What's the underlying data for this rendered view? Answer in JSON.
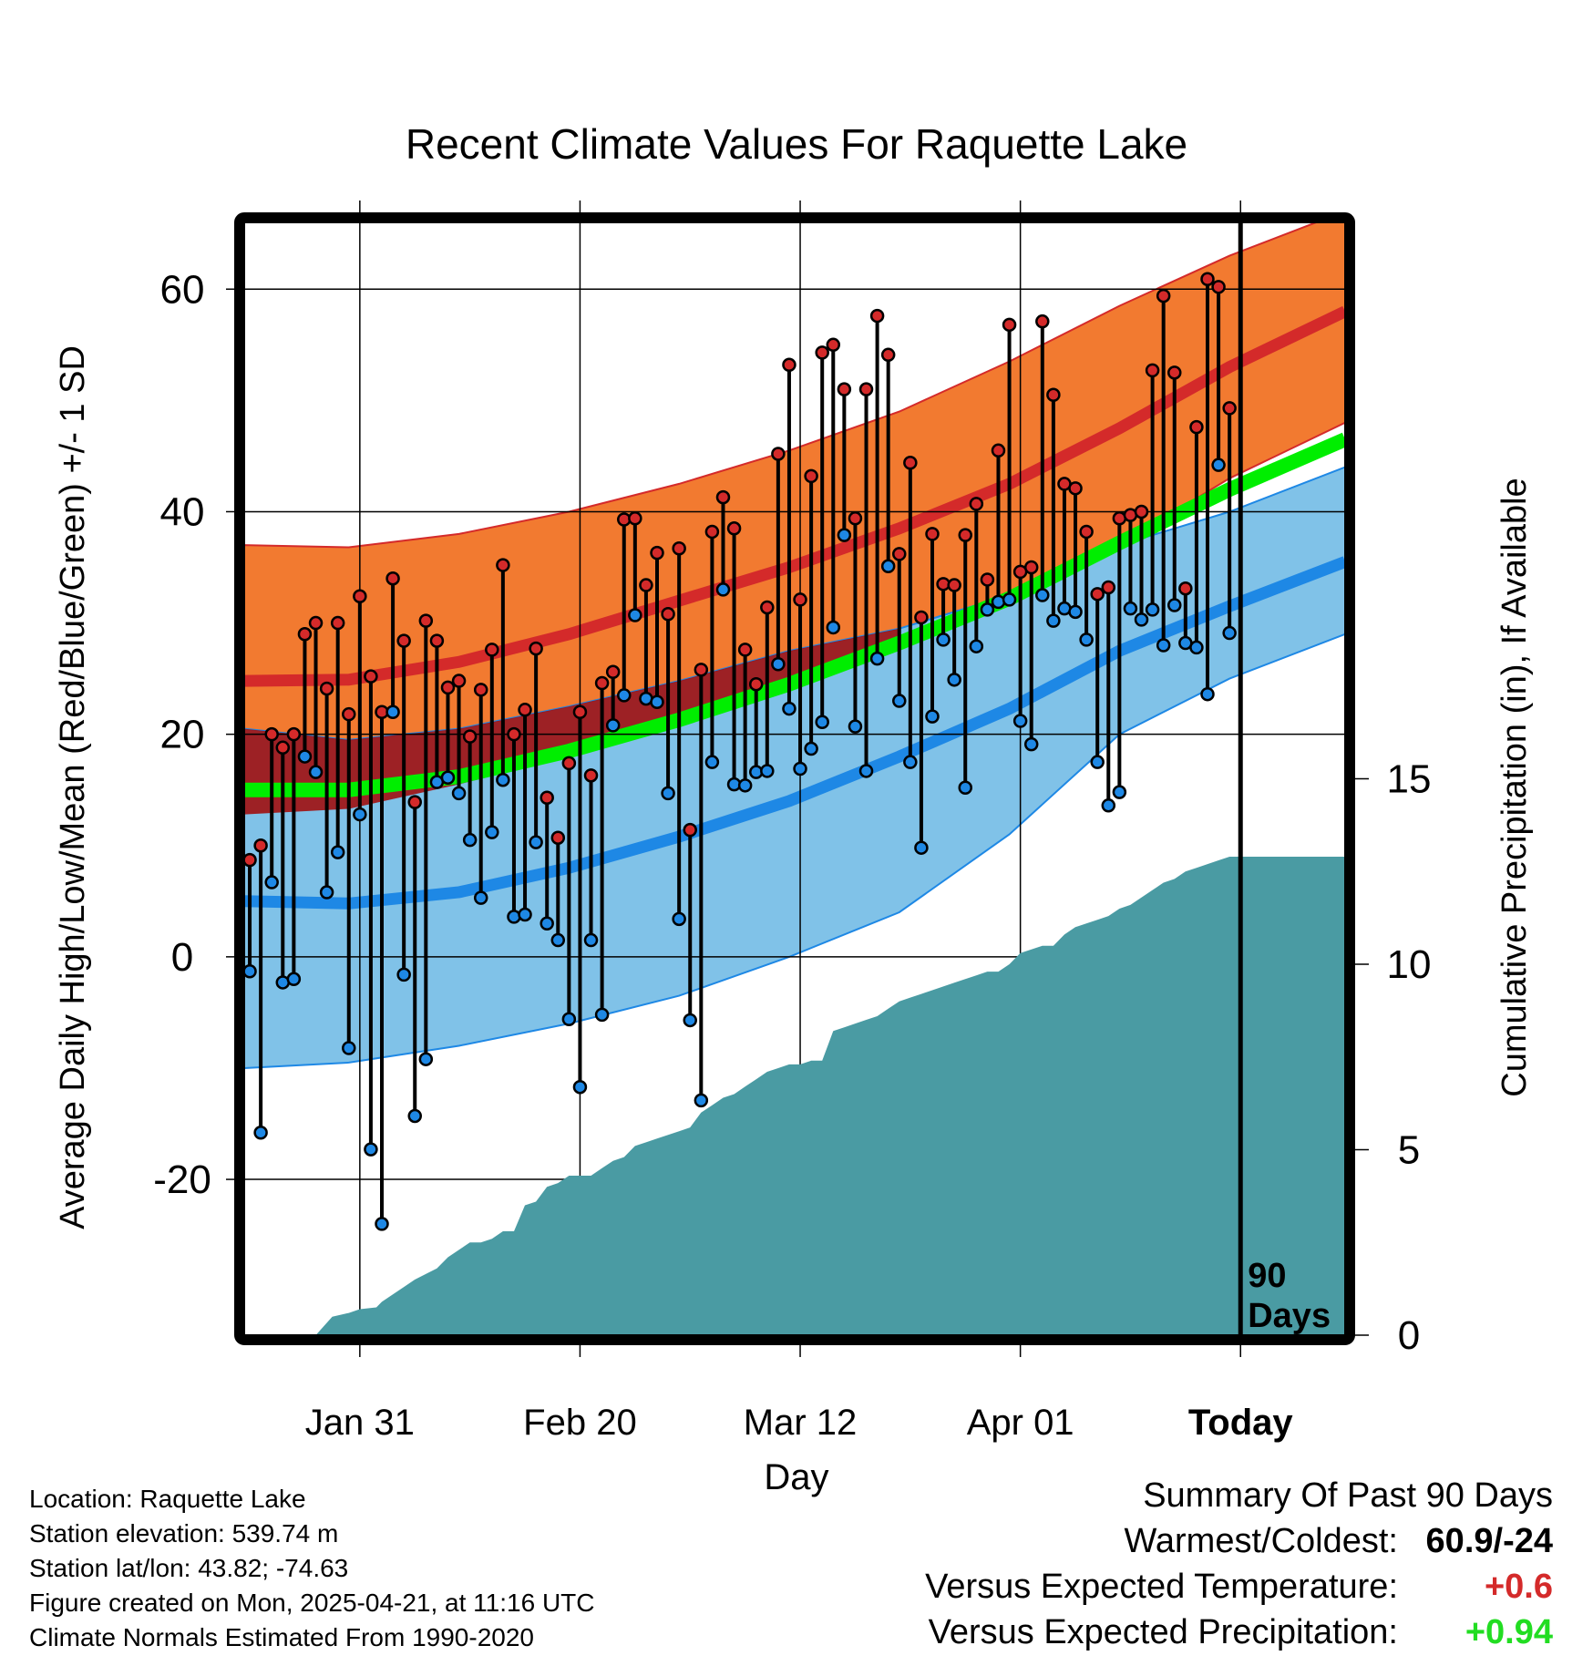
{
  "chart_data": {
    "type": "line",
    "title": "Recent Climate Values For Raquette Lake",
    "xlabel": "Day",
    "ylabel": "Average Daily High/Low/Mean (Red/Blue/Green) +/- 1 SD",
    "y2label": "Cumulative Precipitation (in), If Available",
    "ylim": [
      -34,
      66
    ],
    "y_ticks": [
      -20,
      0,
      20,
      40,
      60
    ],
    "y2lim": [
      0,
      30
    ],
    "y2_ticks": [
      0,
      5,
      10,
      15
    ],
    "xlim": [
      0.5,
      100.5
    ],
    "x_ticks": [
      {
        "day": 11,
        "label": "Jan 31"
      },
      {
        "day": 31,
        "label": "Feb 20"
      },
      {
        "day": 51,
        "label": "Mar 12"
      },
      {
        "day": 71,
        "label": "Apr 01"
      },
      {
        "day": 91,
        "label": "Today"
      }
    ],
    "today_marker": {
      "day": 91,
      "label_line1": "90",
      "label_line2": "Days"
    },
    "normals": {
      "x": [
        0.5,
        10,
        20,
        30,
        40,
        50,
        60,
        70,
        80,
        90,
        100.5
      ],
      "high_mean": [
        24.8,
        24.9,
        26.5,
        29,
        32,
        35,
        38.5,
        42.5,
        47.5,
        53,
        58
      ],
      "high_upper": [
        37,
        36.8,
        38,
        40,
        42.5,
        45.5,
        49,
        53.5,
        58.5,
        63,
        67
      ],
      "high_lower": [
        12.8,
        13.3,
        15.5,
        18,
        21,
        24.5,
        28,
        32,
        37,
        43,
        48
      ],
      "mean_mean": [
        15,
        15,
        16.2,
        18.5,
        21.3,
        24.5,
        28.2,
        32.2,
        37.2,
        42,
        46.5
      ],
      "low_mean": [
        5,
        4.8,
        5.8,
        8,
        10.8,
        14,
        18,
        22.3,
        27.5,
        31.5,
        35.5
      ],
      "low_upper": [
        20.5,
        19.5,
        20.5,
        22.5,
        24.8,
        27.5,
        29.5,
        32.5,
        37,
        40,
        44
      ],
      "low_lower": [
        -10,
        -9.5,
        -8,
        -6,
        -3.5,
        0,
        4,
        11,
        20,
        25,
        29
      ]
    },
    "series": [
      {
        "name": "High",
        "color": "#d42a2a",
        "values": [
          8.7,
          10,
          20,
          18.8,
          20,
          29,
          30,
          24.1,
          30,
          21.8,
          32.4,
          25.2,
          22,
          34,
          28.4,
          13.9,
          30.2,
          28.4,
          24.2,
          24.8,
          19.8,
          24,
          27.6,
          35.2,
          20,
          22.2,
          27.7,
          14.3,
          10.7,
          17.4,
          22,
          16.3,
          24.6,
          25.6,
          39.3,
          39.4,
          33.4,
          36.3,
          30.8,
          36.7,
          11.4,
          25.8,
          38.2,
          41.3,
          38.5,
          27.6,
          24.5,
          31.4,
          45.2,
          53.2,
          32.1,
          43.2,
          54.3,
          55,
          51,
          39.4,
          51,
          57.6,
          54.1,
          36.2,
          44.4,
          30.5,
          38,
          33.5,
          33.4,
          37.9,
          40.7,
          33.9,
          45.5,
          56.8,
          34.6,
          35,
          57.1,
          50.5,
          42.5,
          42.1,
          38.2,
          32.6,
          33.2,
          39.4,
          39.7,
          40,
          52.7,
          59.4,
          52.5,
          33.1,
          47.6,
          60.9,
          60.2,
          49.3
        ]
      },
      {
        "name": "Low",
        "color": "#1e88e5",
        "values": [
          -1.3,
          -15.8,
          6.7,
          -2.3,
          -2,
          18,
          16.6,
          5.8,
          9.4,
          -8.2,
          12.8,
          -17.3,
          -24,
          22,
          -1.6,
          -14.3,
          -9.2,
          15.7,
          16.1,
          14.7,
          10.5,
          5.3,
          11.2,
          15.9,
          3.6,
          3.8,
          10.3,
          3,
          1.5,
          -5.6,
          -11.7,
          1.5,
          -5.2,
          20.8,
          23.5,
          30.7,
          23.2,
          22.9,
          14.7,
          3.4,
          -5.7,
          -12.9,
          17.5,
          33,
          15.5,
          15.4,
          16.6,
          16.7,
          26.3,
          22.3,
          16.9,
          18.7,
          21.1,
          29.6,
          37.9,
          20.7,
          16.7,
          26.8,
          35.1,
          23,
          17.5,
          9.8,
          21.6,
          28.5,
          24.9,
          15.2,
          27.9,
          31.2,
          31.9,
          32.1,
          21.2,
          19.1,
          32.5,
          30.2,
          31.3,
          31,
          28.5,
          17.5,
          13.6,
          14.8,
          31.3,
          30.3,
          31.2,
          28,
          31.6,
          28.2,
          27.8,
          23.6,
          44.2,
          29.1
        ]
      }
    ],
    "cumulative_precipitation": {
      "days": [
        0.5,
        7,
        8.5,
        10,
        11,
        12.5,
        13,
        15,
        16,
        18,
        19,
        20,
        21,
        22,
        23,
        24,
        25,
        26,
        27,
        28,
        29,
        30,
        31,
        32,
        33,
        34,
        35,
        36,
        37,
        38,
        39,
        40,
        41,
        42,
        43,
        44,
        45,
        46,
        47,
        48,
        49,
        50,
        51,
        52,
        53,
        54,
        55,
        56,
        57,
        58,
        59,
        60,
        61,
        62,
        63,
        64,
        65,
        66,
        67,
        68,
        69,
        70,
        71,
        72,
        73,
        74,
        75,
        76,
        77,
        78,
        79,
        80,
        81,
        82,
        83,
        84,
        85,
        86,
        87,
        88,
        89,
        90,
        91,
        100.5
      ],
      "values": [
        0,
        0,
        0.5,
        0.6,
        0.7,
        0.75,
        0.9,
        1.3,
        1.5,
        1.8,
        2.1,
        2.3,
        2.5,
        2.5,
        2.6,
        2.8,
        2.8,
        3.5,
        3.6,
        4,
        4.1,
        4.3,
        4.3,
        4.3,
        4.5,
        4.7,
        4.8,
        5.1,
        5.2,
        5.3,
        5.4,
        5.5,
        5.6,
        6,
        6.2,
        6.4,
        6.5,
        6.7,
        6.9,
        7.1,
        7.2,
        7.3,
        7.3,
        7.4,
        7.4,
        8.2,
        8.3,
        8.4,
        8.5,
        8.6,
        8.8,
        9,
        9.1,
        9.2,
        9.3,
        9.4,
        9.5,
        9.6,
        9.7,
        9.8,
        9.8,
        10,
        10.3,
        10.4,
        10.5,
        10.5,
        10.8,
        11,
        11.1,
        11.2,
        11.3,
        11.5,
        11.6,
        11.8,
        12,
        12.2,
        12.3,
        12.5,
        12.6,
        12.7,
        12.8,
        12.9,
        12.9,
        12.9
      ]
    }
  },
  "info": {
    "location": "Location: Raquette Lake",
    "elevation": "Station elevation: 539.74 m",
    "latlon": "Station lat/lon: 43.82; -74.63",
    "created": "Figure created on Mon, 2025-04-21, at 11:16 UTC",
    "normals": "Climate Normals Estimated From 1990-2020"
  },
  "summary": {
    "title": "Summary Of Past 90 Days",
    "warm_cold_label": "Warmest/Coldest:",
    "warm_cold_value": "60.9/-24",
    "temp_label": "Versus Expected Temperature:",
    "temp_value": "+0.6",
    "temp_color": "#d42a2a",
    "precip_label": "Versus Expected Precipitation:",
    "precip_value": "+0.94",
    "precip_color": "#22dd22"
  },
  "colors": {
    "high_band": "#f27a30",
    "high_line": "#d42a2a",
    "overlap_band": "#a01010",
    "low_band": "#80c2e8",
    "low_line": "#1e88e5",
    "mean_line": "#00ee00",
    "precip": "#4a9ba3"
  }
}
